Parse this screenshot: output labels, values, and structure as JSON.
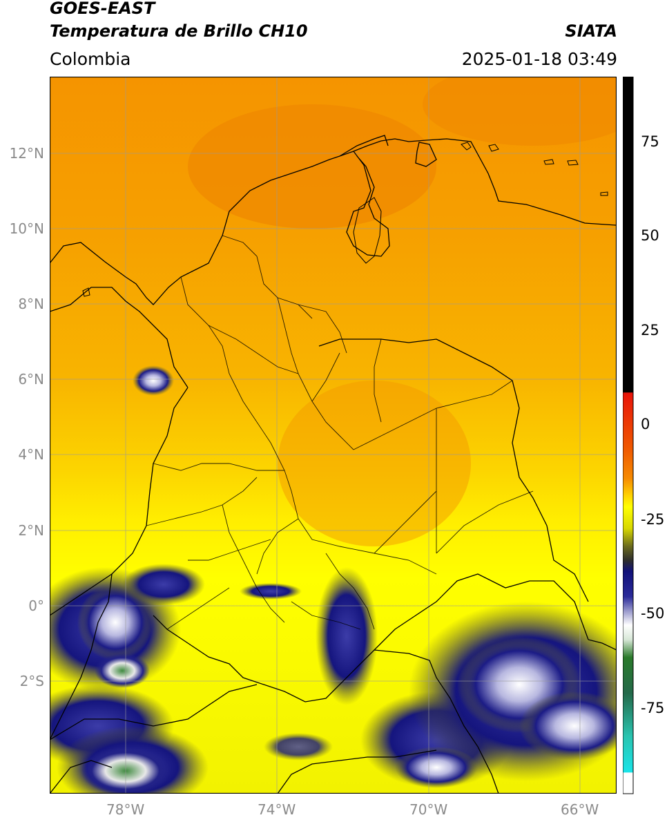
{
  "header": {
    "satellite": "GOES-EAST",
    "product": "Temperatura de Brillo CH10",
    "brand": "SIATA",
    "region": "Colombia",
    "timestamp": "2025-01-18 03:49"
  },
  "map": {
    "lat_ticks": [
      "12°N",
      "10°N",
      "8°N",
      "6°N",
      "4°N",
      "2°N",
      "0°",
      "2°S"
    ],
    "lon_ticks": [
      "78°W",
      "74°W",
      "70°W",
      "66°W"
    ]
  },
  "colorbar": {
    "ticks": [
      "75",
      "50",
      "25",
      "0",
      "-25",
      "-50",
      "-75"
    ],
    "colors": {
      "black": "#000000",
      "red": "#e8140a",
      "orange": "#f58b00",
      "yellow": "#ffff00",
      "olive": "#6b6b1e",
      "navy": "#11117a",
      "white": "#ffffff",
      "green": "#2a7a2a",
      "teal": "#29c4b0",
      "cyan": "#19e4e8"
    }
  }
}
